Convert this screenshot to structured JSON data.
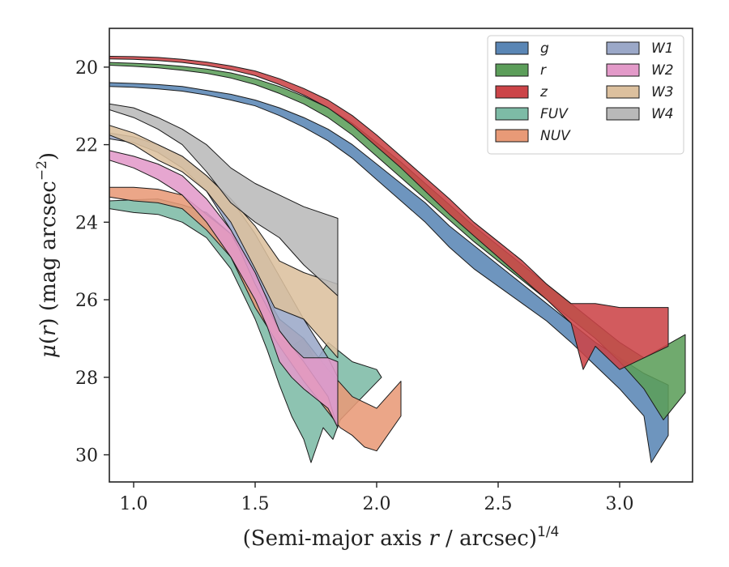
{
  "chart_data": {
    "type": "area",
    "xlabel": "(Semi-major axis r / arcsec)",
    "xlabel_parts": {
      "pre": "(Semi-major axis ",
      "var": "r",
      "post": " / arcsec)",
      "sup": "1/4"
    },
    "ylabel_parts": {
      "mu": "μ",
      "open": "(",
      "var": "r",
      "close": ")",
      "unit": " (mag arcsec",
      "sup": "−2",
      "end": ")"
    },
    "xlim": [
      0.9,
      3.3
    ],
    "ylim": [
      30.7,
      19.0
    ],
    "y_inverted": true,
    "xticks": [
      1.0,
      1.5,
      2.0,
      2.5,
      3.0
    ],
    "xtick_labels": [
      "1.0",
      "1.5",
      "2.0",
      "2.5",
      "3.0"
    ],
    "yticks": [
      20,
      22,
      24,
      26,
      28,
      30
    ],
    "ytick_labels": [
      "20",
      "22",
      "24",
      "26",
      "28",
      "30"
    ],
    "grid": false,
    "legend": {
      "placement": "top-right",
      "columns": 2
    },
    "series": [
      {
        "name": "FUV",
        "color": "#7dbba6",
        "upper": [
          [
            0.9,
            23.45
          ],
          [
            1.0,
            23.42
          ],
          [
            1.1,
            23.4
          ],
          [
            1.2,
            23.55
          ],
          [
            1.3,
            23.75
          ],
          [
            1.4,
            24.3
          ],
          [
            1.5,
            25.3
          ],
          [
            1.55,
            26.0
          ],
          [
            1.6,
            27.0
          ],
          [
            1.65,
            27.2
          ],
          [
            1.7,
            27.0
          ],
          [
            1.75,
            27.6
          ],
          [
            1.8,
            27.1
          ],
          [
            1.9,
            27.6
          ],
          [
            2.0,
            27.8
          ],
          [
            2.02,
            28.0
          ]
        ],
        "lower": [
          [
            0.9,
            23.65
          ],
          [
            1.0,
            23.75
          ],
          [
            1.1,
            23.8
          ],
          [
            1.2,
            24.0
          ],
          [
            1.3,
            24.4
          ],
          [
            1.4,
            25.2
          ],
          [
            1.5,
            26.5
          ],
          [
            1.55,
            27.3
          ],
          [
            1.6,
            28.2
          ],
          [
            1.65,
            29.0
          ],
          [
            1.7,
            29.6
          ],
          [
            1.73,
            30.2
          ],
          [
            1.78,
            29.3
          ],
          [
            1.82,
            29.6
          ],
          [
            1.85,
            29.1
          ]
        ]
      },
      {
        "name": "NUV",
        "color": "#e89a77",
        "upper": [
          [
            0.9,
            23.1
          ],
          [
            1.0,
            23.1
          ],
          [
            1.1,
            23.15
          ],
          [
            1.2,
            23.3
          ],
          [
            1.3,
            23.8
          ],
          [
            1.4,
            24.3
          ],
          [
            1.5,
            25.4
          ],
          [
            1.6,
            26.5
          ],
          [
            1.7,
            27.0
          ],
          [
            1.8,
            27.8
          ],
          [
            1.9,
            28.5
          ],
          [
            2.0,
            28.8
          ],
          [
            2.1,
            28.1
          ]
        ],
        "lower": [
          [
            0.9,
            23.35
          ],
          [
            1.0,
            23.45
          ],
          [
            1.1,
            23.5
          ],
          [
            1.2,
            23.65
          ],
          [
            1.3,
            24.2
          ],
          [
            1.4,
            24.9
          ],
          [
            1.5,
            26.2
          ],
          [
            1.6,
            27.2
          ],
          [
            1.7,
            28.1
          ],
          [
            1.8,
            28.9
          ],
          [
            1.85,
            29.3
          ],
          [
            1.9,
            29.5
          ],
          [
            1.95,
            29.8
          ],
          [
            2.0,
            29.9
          ],
          [
            2.1,
            29.0
          ]
        ]
      },
      {
        "name": "W1",
        "color": "#9ba8c8",
        "upper": [
          [
            0.9,
            21.7
          ],
          [
            1.0,
            21.8
          ],
          [
            1.1,
            22.0
          ],
          [
            1.2,
            22.3
          ],
          [
            1.3,
            22.8
          ],
          [
            1.4,
            23.4
          ],
          [
            1.5,
            24.3
          ],
          [
            1.6,
            25.4
          ],
          [
            1.7,
            26.5
          ],
          [
            1.8,
            27.5
          ],
          [
            1.84,
            28.0
          ]
        ],
        "lower": [
          [
            0.9,
            21.85
          ],
          [
            1.0,
            21.95
          ],
          [
            1.1,
            22.2
          ],
          [
            1.2,
            22.6
          ],
          [
            1.3,
            23.2
          ],
          [
            1.4,
            24.2
          ],
          [
            1.5,
            25.6
          ],
          [
            1.6,
            26.8
          ],
          [
            1.7,
            27.6
          ],
          [
            1.8,
            28.5
          ],
          [
            1.84,
            29.3
          ]
        ]
      },
      {
        "name": "W2",
        "color": "#e39ac9",
        "upper": [
          [
            0.9,
            22.15
          ],
          [
            1.0,
            22.3
          ],
          [
            1.1,
            22.5
          ],
          [
            1.2,
            22.8
          ],
          [
            1.3,
            23.4
          ],
          [
            1.4,
            24.2
          ],
          [
            1.5,
            25.3
          ],
          [
            1.55,
            26.0
          ],
          [
            1.6,
            26.8
          ],
          [
            1.65,
            27.2
          ],
          [
            1.7,
            27.5
          ],
          [
            1.8,
            27.5
          ],
          [
            1.84,
            27.6
          ]
        ],
        "lower": [
          [
            0.9,
            22.4
          ],
          [
            1.0,
            22.6
          ],
          [
            1.1,
            22.9
          ],
          [
            1.2,
            23.3
          ],
          [
            1.3,
            24.0
          ],
          [
            1.4,
            24.9
          ],
          [
            1.5,
            26.0
          ],
          [
            1.55,
            26.7
          ],
          [
            1.6,
            27.6
          ],
          [
            1.65,
            28.0
          ],
          [
            1.7,
            28.3
          ],
          [
            1.8,
            28.8
          ],
          [
            1.84,
            29.3
          ]
        ]
      },
      {
        "name": "W3",
        "color": "#dcc09e",
        "upper": [
          [
            0.9,
            21.5
          ],
          [
            1.0,
            21.7
          ],
          [
            1.1,
            22.0
          ],
          [
            1.2,
            22.3
          ],
          [
            1.3,
            22.8
          ],
          [
            1.4,
            23.4
          ],
          [
            1.5,
            24.1
          ],
          [
            1.6,
            25.0
          ],
          [
            1.7,
            25.3
          ],
          [
            1.84,
            25.6
          ]
        ],
        "lower": [
          [
            0.9,
            21.75
          ],
          [
            1.0,
            22.0
          ],
          [
            1.1,
            22.4
          ],
          [
            1.2,
            22.7
          ],
          [
            1.3,
            23.2
          ],
          [
            1.4,
            24.0
          ],
          [
            1.5,
            25.2
          ],
          [
            1.58,
            26.2
          ],
          [
            1.7,
            26.5
          ],
          [
            1.84,
            27.5
          ]
        ]
      },
      {
        "name": "W4",
        "color": "#b9b9b9",
        "upper": [
          [
            0.9,
            20.95
          ],
          [
            1.0,
            21.05
          ],
          [
            1.1,
            21.3
          ],
          [
            1.2,
            21.6
          ],
          [
            1.3,
            22.0
          ],
          [
            1.4,
            22.6
          ],
          [
            1.5,
            23.0
          ],
          [
            1.6,
            23.3
          ],
          [
            1.7,
            23.6
          ],
          [
            1.84,
            23.9
          ]
        ],
        "lower": [
          [
            0.9,
            21.1
          ],
          [
            1.0,
            21.3
          ],
          [
            1.1,
            21.6
          ],
          [
            1.2,
            22.0
          ],
          [
            1.3,
            22.7
          ],
          [
            1.4,
            23.5
          ],
          [
            1.5,
            24.0
          ],
          [
            1.6,
            24.4
          ],
          [
            1.7,
            25.1
          ],
          [
            1.84,
            25.9
          ]
        ]
      },
      {
        "name": "g",
        "color": "#5a86b5",
        "upper": [
          [
            0.9,
            20.4
          ],
          [
            1.0,
            20.42
          ],
          [
            1.1,
            20.45
          ],
          [
            1.2,
            20.5
          ],
          [
            1.3,
            20.6
          ],
          [
            1.4,
            20.7
          ],
          [
            1.5,
            20.85
          ],
          [
            1.6,
            21.05
          ],
          [
            1.7,
            21.3
          ],
          [
            1.8,
            21.6
          ],
          [
            1.9,
            22.0
          ],
          [
            2.0,
            22.5
          ],
          [
            2.1,
            23.0
          ],
          [
            2.2,
            23.5
          ],
          [
            2.3,
            24.1
          ],
          [
            2.4,
            24.6
          ],
          [
            2.5,
            25.1
          ],
          [
            2.6,
            25.6
          ],
          [
            2.7,
            26.1
          ],
          [
            2.8,
            26.6
          ],
          [
            2.9,
            27.1
          ],
          [
            3.0,
            27.5
          ],
          [
            3.1,
            27.9
          ],
          [
            3.2,
            28.2
          ]
        ],
        "lower": [
          [
            0.9,
            20.5
          ],
          [
            1.0,
            20.52
          ],
          [
            1.1,
            20.56
          ],
          [
            1.2,
            20.62
          ],
          [
            1.3,
            20.72
          ],
          [
            1.4,
            20.85
          ],
          [
            1.5,
            21.0
          ],
          [
            1.6,
            21.25
          ],
          [
            1.7,
            21.55
          ],
          [
            1.8,
            21.9
          ],
          [
            1.9,
            22.35
          ],
          [
            2.0,
            22.9
          ],
          [
            2.1,
            23.45
          ],
          [
            2.2,
            24.0
          ],
          [
            2.3,
            24.65
          ],
          [
            2.4,
            25.2
          ],
          [
            2.5,
            25.65
          ],
          [
            2.6,
            26.1
          ],
          [
            2.7,
            26.55
          ],
          [
            2.8,
            27.1
          ],
          [
            2.9,
            27.7
          ],
          [
            3.0,
            28.3
          ],
          [
            3.1,
            29.0
          ],
          [
            3.13,
            30.2
          ],
          [
            3.2,
            29.5
          ]
        ]
      },
      {
        "name": "r",
        "color": "#5c9e5a",
        "upper": [
          [
            0.9,
            19.88
          ],
          [
            1.0,
            19.9
          ],
          [
            1.1,
            19.93
          ],
          [
            1.2,
            19.98
          ],
          [
            1.3,
            20.05
          ],
          [
            1.4,
            20.15
          ],
          [
            1.5,
            20.3
          ],
          [
            1.6,
            20.5
          ],
          [
            1.7,
            20.75
          ],
          [
            1.8,
            21.05
          ],
          [
            1.9,
            21.45
          ],
          [
            2.0,
            21.95
          ],
          [
            2.1,
            22.45
          ],
          [
            2.2,
            23.0
          ],
          [
            2.3,
            23.55
          ],
          [
            2.4,
            24.1
          ],
          [
            2.5,
            24.6
          ],
          [
            2.6,
            25.1
          ],
          [
            2.7,
            25.6
          ],
          [
            2.8,
            26.1
          ],
          [
            2.9,
            26.6
          ],
          [
            3.0,
            27.1
          ],
          [
            3.1,
            27.5
          ],
          [
            3.27,
            26.9
          ]
        ],
        "lower": [
          [
            0.9,
            19.95
          ],
          [
            1.0,
            19.98
          ],
          [
            1.1,
            20.02
          ],
          [
            1.2,
            20.08
          ],
          [
            1.3,
            20.16
          ],
          [
            1.4,
            20.28
          ],
          [
            1.5,
            20.45
          ],
          [
            1.6,
            20.68
          ],
          [
            1.7,
            20.95
          ],
          [
            1.8,
            21.3
          ],
          [
            1.9,
            21.75
          ],
          [
            2.0,
            22.3
          ],
          [
            2.1,
            22.85
          ],
          [
            2.2,
            23.4
          ],
          [
            2.3,
            23.95
          ],
          [
            2.4,
            24.5
          ],
          [
            2.5,
            25.0
          ],
          [
            2.6,
            25.5
          ],
          [
            2.7,
            26.0
          ],
          [
            2.8,
            26.5
          ],
          [
            2.9,
            27.0
          ],
          [
            3.0,
            27.6
          ],
          [
            3.1,
            28.3
          ],
          [
            3.18,
            29.1
          ],
          [
            3.27,
            28.4
          ]
        ]
      },
      {
        "name": "z",
        "color": "#cc4448",
        "upper": [
          [
            0.9,
            19.72
          ],
          [
            1.0,
            19.73
          ],
          [
            1.1,
            19.75
          ],
          [
            1.2,
            19.8
          ],
          [
            1.3,
            19.87
          ],
          [
            1.4,
            19.97
          ],
          [
            1.5,
            20.1
          ],
          [
            1.6,
            20.3
          ],
          [
            1.7,
            20.55
          ],
          [
            1.8,
            20.85
          ],
          [
            1.9,
            21.25
          ],
          [
            2.0,
            21.75
          ],
          [
            2.1,
            22.3
          ],
          [
            2.2,
            22.85
          ],
          [
            2.3,
            23.4
          ],
          [
            2.4,
            24.0
          ],
          [
            2.5,
            24.5
          ],
          [
            2.6,
            25.0
          ],
          [
            2.7,
            25.6
          ],
          [
            2.8,
            26.1
          ],
          [
            2.9,
            26.1
          ],
          [
            3.0,
            26.2
          ],
          [
            3.1,
            26.2
          ],
          [
            3.2,
            26.2
          ]
        ],
        "lower": [
          [
            0.9,
            19.79
          ],
          [
            1.0,
            19.8
          ],
          [
            1.1,
            19.83
          ],
          [
            1.2,
            19.88
          ],
          [
            1.3,
            19.96
          ],
          [
            1.4,
            20.07
          ],
          [
            1.5,
            20.22
          ],
          [
            1.6,
            20.45
          ],
          [
            1.7,
            20.72
          ],
          [
            1.8,
            21.05
          ],
          [
            1.9,
            21.5
          ],
          [
            2.0,
            22.05
          ],
          [
            2.1,
            22.6
          ],
          [
            2.2,
            23.2
          ],
          [
            2.3,
            23.8
          ],
          [
            2.4,
            24.35
          ],
          [
            2.5,
            24.9
          ],
          [
            2.6,
            25.45
          ],
          [
            2.7,
            26.0
          ],
          [
            2.8,
            26.6
          ],
          [
            2.85,
            27.8
          ],
          [
            2.9,
            27.2
          ],
          [
            3.0,
            27.8
          ],
          [
            3.1,
            27.5
          ],
          [
            3.2,
            27.2
          ]
        ]
      }
    ]
  }
}
